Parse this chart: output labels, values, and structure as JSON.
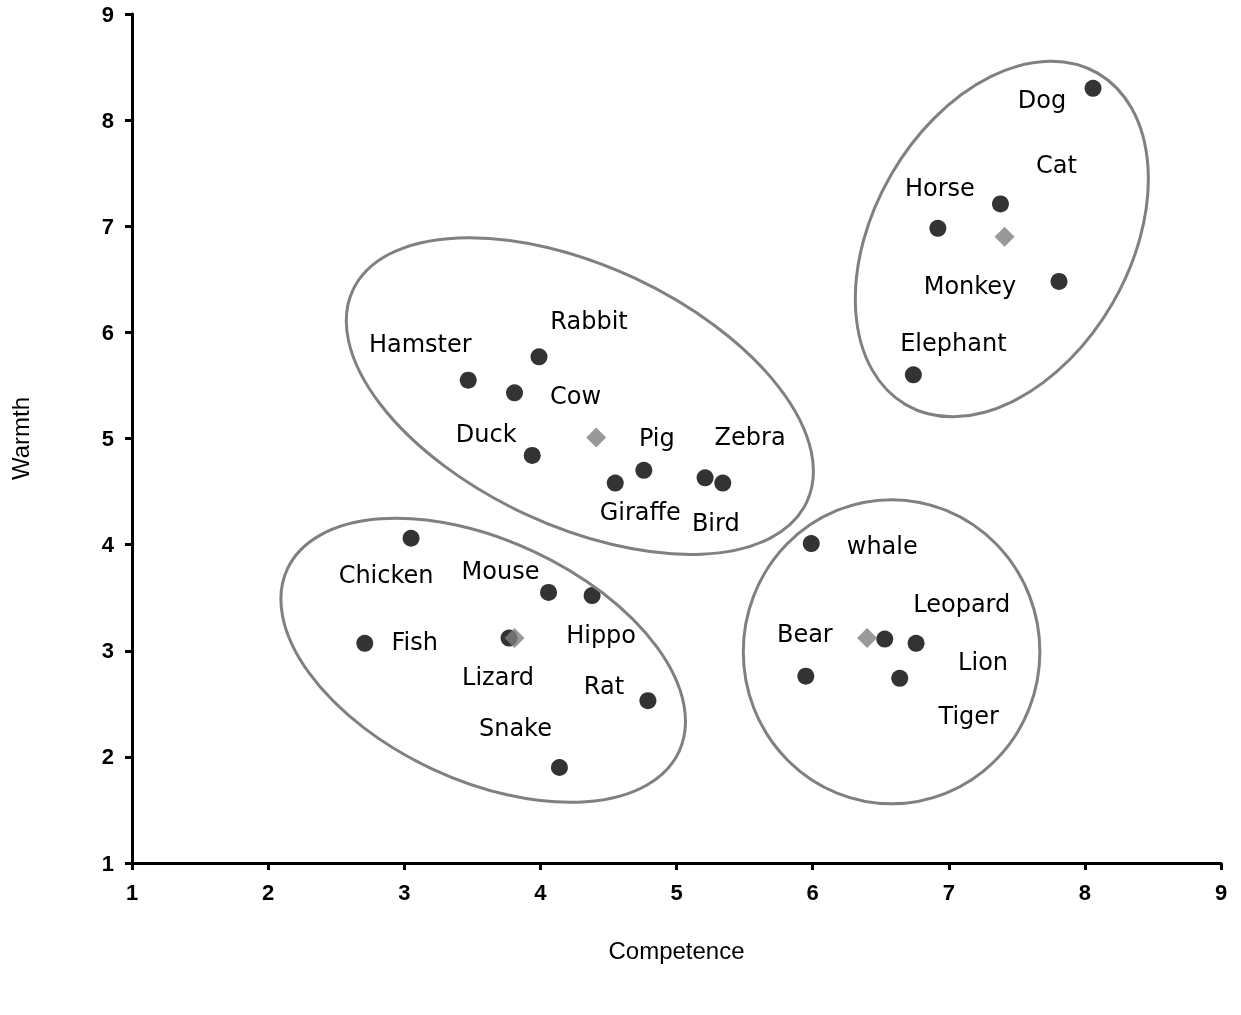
{
  "chart_data": {
    "type": "scatter",
    "xlabel": "Competence",
    "ylabel": "Warmth",
    "xlim": [
      1,
      9
    ],
    "xticks": [
      1,
      2,
      3,
      4,
      5,
      6,
      7,
      8,
      9
    ],
    "ylim": [
      1,
      9
    ],
    "yticks": [
      1,
      2,
      3,
      4,
      5,
      6,
      7,
      8,
      9
    ],
    "grid": false,
    "series": [
      {
        "color": "#000000",
        "marker": "circle",
        "x": [
          8.06,
          7.38,
          6.92,
          7.81,
          6.74,
          3.99,
          3.47,
          3.81,
          3.94,
          4.55,
          4.76,
          5.21,
          5.34,
          3.05,
          5.99,
          4.06,
          4.38,
          2.71,
          3.77,
          6.53,
          6.76,
          5.95,
          6.64,
          4.79,
          4.14
        ],
        "values": [
          8.3,
          7.21,
          6.98,
          6.48,
          5.6,
          5.77,
          5.55,
          5.43,
          4.84,
          4.58,
          4.7,
          4.63,
          4.58,
          4.06,
          4.01,
          3.55,
          3.52,
          3.07,
          3.12,
          3.11,
          3.07,
          2.76,
          2.74,
          2.53,
          1.9
        ]
      },
      {
        "color": "#808080",
        "marker": "diamond",
        "x": [
          7.41,
          4.41,
          3.81,
          6.4
        ],
        "values": [
          6.9,
          5.01,
          3.12,
          3.12
        ]
      }
    ],
    "annotations": [
      {
        "text": "Dog",
        "x": 8.06,
        "y": 8.3
      },
      {
        "text": "Cat",
        "x": 7.38,
        "y": 7.21
      },
      {
        "text": "Horse",
        "x": 6.92,
        "y": 6.98
      },
      {
        "text": "Monkey",
        "x": 7.81,
        "y": 6.48
      },
      {
        "text": "Elephant",
        "x": 6.74,
        "y": 5.6
      },
      {
        "text": "Rabbit",
        "x": 3.99,
        "y": 5.77
      },
      {
        "text": "Hamster",
        "x": 3.47,
        "y": 5.55
      },
      {
        "text": "Cow",
        "x": 3.81,
        "y": 5.43
      },
      {
        "text": "Duck",
        "x": 3.94,
        "y": 4.84
      },
      {
        "text": "Pig",
        "x": 4.76,
        "y": 4.7
      },
      {
        "text": "Zebra",
        "x": 5.21,
        "y": 4.63
      },
      {
        "text": "Giraffe",
        "x": 4.55,
        "y": 4.58
      },
      {
        "text": "Bird",
        "x": 5.34,
        "y": 4.58
      },
      {
        "text": "whale",
        "x": 5.99,
        "y": 4.01
      },
      {
        "text": "Chicken",
        "x": 3.05,
        "y": 4.06
      },
      {
        "text": "Mouse",
        "x": 4.06,
        "y": 3.55
      },
      {
        "text": "Leopard",
        "x": 6.53,
        "y": 3.11
      },
      {
        "text": "Bear",
        "x": 5.95,
        "y": 2.76
      },
      {
        "text": "Fish",
        "x": 2.71,
        "y": 3.07
      },
      {
        "text": "Hippo",
        "x": 4.38,
        "y": 3.52
      },
      {
        "text": "Lion",
        "x": 6.76,
        "y": 3.07
      },
      {
        "text": "Lizard",
        "x": 3.77,
        "y": 3.12
      },
      {
        "text": "Rat",
        "x": 4.79,
        "y": 2.53
      },
      {
        "text": "Tiger",
        "x": 6.64,
        "y": 2.74
      },
      {
        "text": "Snake",
        "x": 4.14,
        "y": 1.9
      }
    ]
  }
}
